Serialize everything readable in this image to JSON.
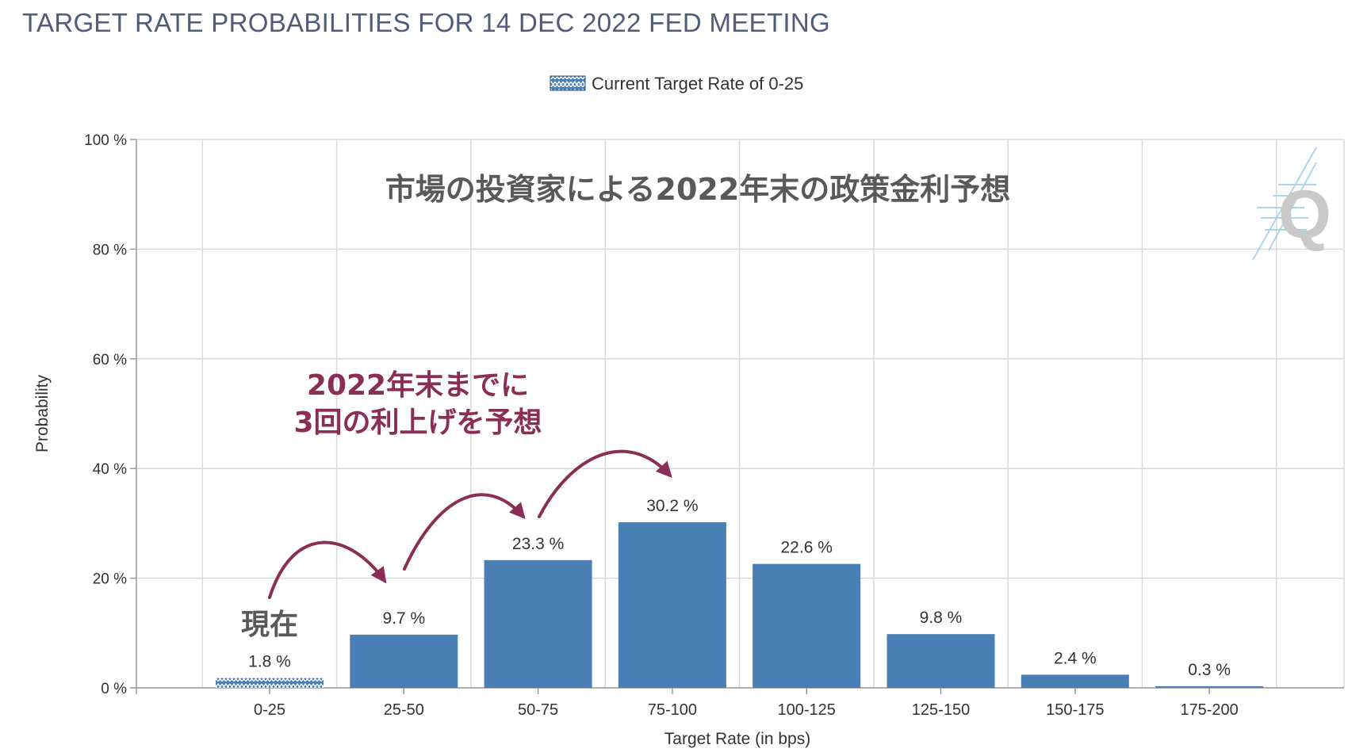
{
  "title": "TARGET RATE PROBABILITIES FOR 14 DEC 2022 FED MEETING",
  "legend": {
    "label": "Current Target Rate of 0-25"
  },
  "overlay": {
    "heading": "市場の投資家による2022年末の政策金利予想",
    "annotation_line1": "2022年末までに",
    "annotation_line2": "3回の利上げを予想",
    "current_label": "現在"
  },
  "watermark": "Q",
  "colors": {
    "bar": "#4a7fb5",
    "current_bar": "#4a7fb5",
    "annotation": "#8b2e55",
    "grid": "#d9d9d9",
    "title": "#4d5d7a"
  },
  "chart_data": {
    "type": "bar",
    "title": "TARGET RATE PROBABILITIES FOR 14 DEC 2022 FED MEETING",
    "xlabel": "Target Rate (in bps)",
    "ylabel": "Probability",
    "ylim": [
      0,
      100
    ],
    "y_ticks": [
      0,
      20,
      40,
      60,
      80,
      100
    ],
    "y_tick_labels": [
      "0 %",
      "20 %",
      "40 %",
      "60 %",
      "80 %",
      "100 %"
    ],
    "categories": [
      "0-25",
      "25-50",
      "50-75",
      "75-100",
      "100-125",
      "125-150",
      "150-175",
      "175-200"
    ],
    "values": [
      1.8,
      9.7,
      23.3,
      30.2,
      22.6,
      9.8,
      2.4,
      0.3
    ],
    "value_labels": [
      "1.8 %",
      "9.7 %",
      "23.3 %",
      "30.2 %",
      "22.6 %",
      "9.8 %",
      "2.4 %",
      "0.3 %"
    ],
    "current_category": "0-25",
    "grid": true,
    "legend_position": "top-center"
  }
}
